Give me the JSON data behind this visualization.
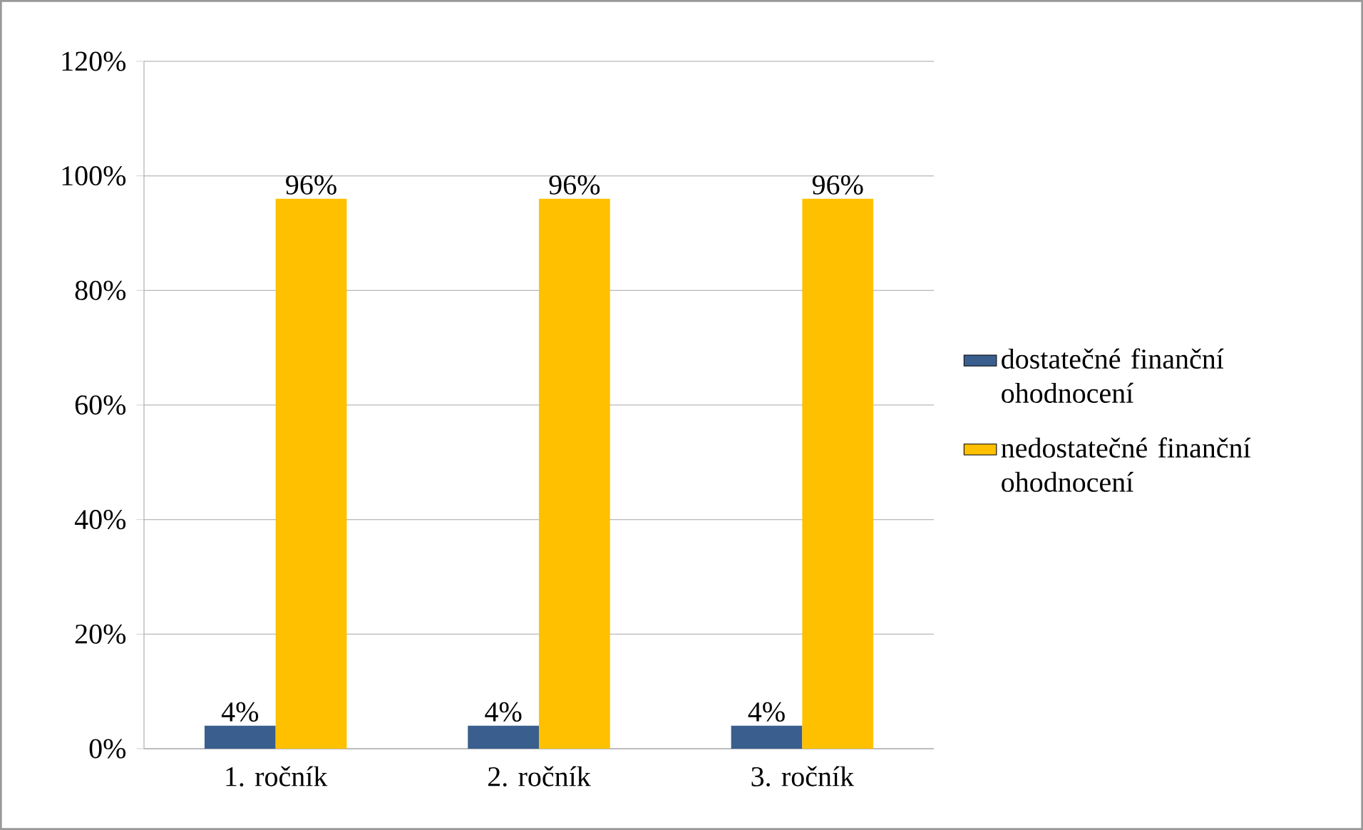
{
  "chart_data": {
    "type": "bar",
    "categories": [
      "1. ročník",
      "2. ročník",
      "3. ročník"
    ],
    "series": [
      {
        "name": "dostatečné finanční ohodnocení",
        "color": "#3a5f8f",
        "values": [
          4,
          4,
          4
        ],
        "value_labels": [
          "4%",
          "4%",
          "4%"
        ]
      },
      {
        "name": "nedostatečné finanční ohodnocení",
        "color": "#ffc000",
        "values": [
          96,
          96,
          96
        ],
        "value_labels": [
          "96%",
          "96%",
          "96%"
        ]
      }
    ],
    "ylim": [
      0,
      120
    ],
    "yticks": [
      {
        "value": 0,
        "label": "0%"
      },
      {
        "value": 20,
        "label": "20%"
      },
      {
        "value": 40,
        "label": "40%"
      },
      {
        "value": 60,
        "label": "60%"
      },
      {
        "value": 80,
        "label": "80%"
      },
      {
        "value": 100,
        "label": "100%"
      },
      {
        "value": 120,
        "label": "120%"
      }
    ],
    "grid": "y",
    "legend": "right"
  }
}
